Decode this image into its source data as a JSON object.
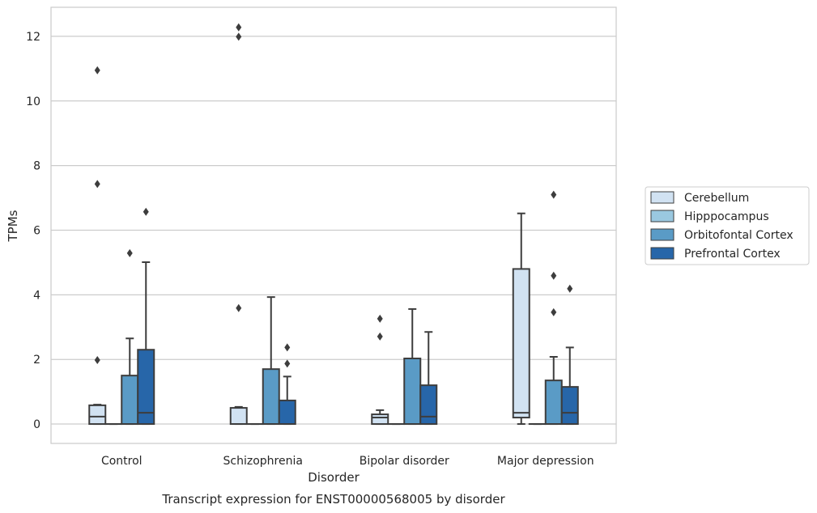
{
  "chart_data": {
    "type": "box",
    "title": "",
    "caption": "Transcript expression for ENST00000568005 by disorder",
    "xlabel": "Disorder",
    "ylabel": "TPMs",
    "ylim": [
      -0.6,
      12.9
    ],
    "yticks": [
      0,
      2,
      4,
      6,
      8,
      10,
      12
    ],
    "grid": "horizontal",
    "legend_position": "right",
    "categories": [
      "Control",
      "Schizophrenia",
      "Bipolar disorder",
      "Major depression"
    ],
    "series": [
      {
        "name": "Cerebellum",
        "color": "#d1e2f2",
        "boxes": [
          {
            "q1": 0,
            "median": 0.23,
            "q3": 0.58,
            "whislo": 0,
            "whishi": 0.6,
            "fliers": [
              1.98,
              7.43,
              10.95
            ]
          },
          {
            "q1": 0,
            "median": 0,
            "q3": 0.5,
            "whislo": 0,
            "whishi": 0.53,
            "fliers": [
              3.59,
              11.99,
              12.28
            ]
          },
          {
            "q1": 0,
            "median": 0.2,
            "q3": 0.3,
            "whislo": 0,
            "whishi": 0.43,
            "fliers": [
              2.71,
              3.26
            ]
          },
          {
            "q1": 0.2,
            "median": 0.35,
            "q3": 4.8,
            "whislo": 0,
            "whishi": 6.52,
            "fliers": []
          }
        ]
      },
      {
        "name": "Hipppocampus",
        "color": "#9ac8e0",
        "boxes": [
          {
            "q1": 0,
            "median": 0,
            "q3": 0,
            "whislo": 0,
            "whishi": 0,
            "fliers": []
          },
          {
            "q1": 0,
            "median": 0,
            "q3": 0,
            "whislo": 0,
            "whishi": 0,
            "fliers": []
          },
          {
            "q1": 0,
            "median": 0,
            "q3": 0,
            "whislo": 0,
            "whishi": 0,
            "fliers": []
          },
          {
            "q1": 0,
            "median": 0,
            "q3": 0,
            "whislo": 0,
            "whishi": 0,
            "fliers": []
          }
        ]
      },
      {
        "name": "Orbitofontal Cortex",
        "color": "#5a9bc6",
        "boxes": [
          {
            "q1": 0,
            "median": 0,
            "q3": 1.5,
            "whislo": 0,
            "whishi": 2.65,
            "fliers": [
              5.29
            ]
          },
          {
            "q1": 0,
            "median": 0,
            "q3": 1.7,
            "whislo": 0,
            "whishi": 3.93,
            "fliers": []
          },
          {
            "q1": 0,
            "median": 0,
            "q3": 2.03,
            "whislo": 0,
            "whishi": 3.56,
            "fliers": []
          },
          {
            "q1": 0,
            "median": 0,
            "q3": 1.35,
            "whislo": 0,
            "whishi": 2.08,
            "fliers": [
              3.46,
              4.59,
              7.1
            ]
          }
        ]
      },
      {
        "name": "Prefrontal Cortex",
        "color": "#2766a9",
        "boxes": [
          {
            "q1": 0,
            "median": 0.35,
            "q3": 2.3,
            "whislo": 0,
            "whishi": 5.01,
            "fliers": [
              6.57
            ]
          },
          {
            "q1": 0,
            "median": 0,
            "q3": 0.73,
            "whislo": 0,
            "whishi": 1.47,
            "fliers": [
              1.87,
              2.37
            ]
          },
          {
            "q1": 0,
            "median": 0.23,
            "q3": 1.2,
            "whislo": 0,
            "whishi": 2.85,
            "fliers": []
          },
          {
            "q1": 0,
            "median": 0.35,
            "q3": 1.15,
            "whislo": 0,
            "whishi": 2.37,
            "fliers": [
              4.19
            ]
          }
        ]
      }
    ]
  }
}
